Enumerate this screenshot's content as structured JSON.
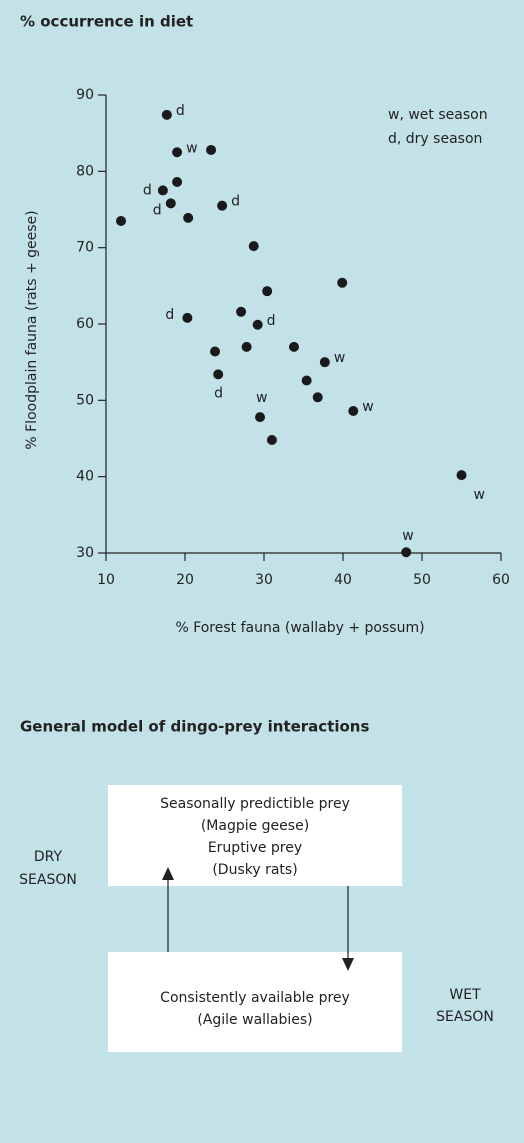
{
  "chart_data": {
    "type": "scatter",
    "title": "% occurrence in diet",
    "xlabel": "% Forest fauna (wallaby + possum)",
    "ylabel": "% Floodplain fauna (rats + geese)",
    "xlim": [
      10,
      60
    ],
    "ylim": [
      30,
      90
    ],
    "xticks": [
      10,
      20,
      30,
      40,
      50,
      60
    ],
    "yticks": [
      30,
      40,
      50,
      60,
      70,
      80,
      90
    ],
    "color": "#1a1a1a",
    "x": [
      17.7,
      19.0,
      23.3,
      19.0,
      17.2,
      18.2,
      20.4,
      24.7,
      11.9,
      28.7,
      39.9,
      30.4,
      20.3,
      27.1,
      29.2,
      23.8,
      27.8,
      33.8,
      24.2,
      37.7,
      35.4,
      36.8,
      29.5,
      41.3,
      31.0,
      55.0,
      48.0
    ],
    "y": [
      87.4,
      82.5,
      82.8,
      78.6,
      77.5,
      75.8,
      73.9,
      75.5,
      73.5,
      70.2,
      65.4,
      64.3,
      60.8,
      61.6,
      59.9,
      56.4,
      57.0,
      57.0,
      53.4,
      55.0,
      52.6,
      50.4,
      47.8,
      48.6,
      44.8,
      40.2,
      30.1
    ],
    "point_labels": [
      "d",
      "w",
      null,
      null,
      "d",
      "d",
      null,
      "d",
      null,
      null,
      null,
      null,
      "d",
      null,
      "d",
      null,
      null,
      null,
      "d",
      "w",
      null,
      null,
      "w",
      "w",
      null,
      "w",
      "w"
    ],
    "annotations": [
      "w, wet season",
      "d, dry season"
    ]
  },
  "diagram": {
    "title": "General model of dingo-prey interactions",
    "top_box": [
      "Seasonally predictible prey",
      "(Magpie geese)",
      "Eruptive prey",
      "(Dusky rats)"
    ],
    "bottom_box": [
      "Consistently available prey",
      "(Agile wallabies)"
    ],
    "left_label": [
      "DRY",
      "SEASON"
    ],
    "right_label": [
      "WET",
      "SEASON"
    ]
  }
}
